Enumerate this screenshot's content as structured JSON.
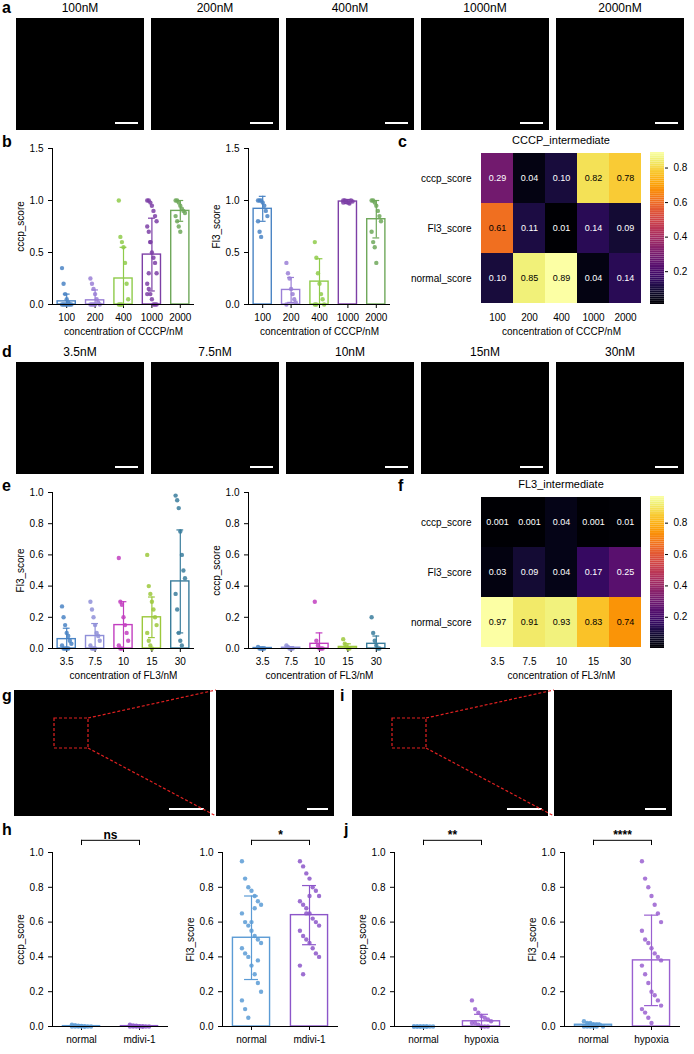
{
  "image_panels": [
    {
      "panel": "a",
      "titles": [
        "100nM",
        "200nM",
        "400nM",
        "1000nM",
        "2000nM"
      ]
    },
    {
      "panel": "d",
      "titles": [
        "3.5nM",
        "7.5nM",
        "10nM",
        "15nM",
        "30nM"
      ]
    },
    {
      "panel": "g"
    },
    {
      "panel": "i"
    }
  ],
  "chart_data": [
    {
      "panel": "b",
      "type": "bar",
      "x_label": "concentration of CCCP/nM",
      "y_label": "cccp_score",
      "categories": [
        "100",
        "200",
        "400",
        "1000",
        "2000"
      ],
      "values": [
        0.03,
        0.04,
        0.25,
        0.48,
        0.9
      ],
      "error": [
        0.07,
        0.1,
        0.3,
        0.35,
        0.1
      ],
      "points": [
        [
          0.35,
          0.2,
          0.1,
          0.05,
          0.02,
          0,
          0,
          0,
          0,
          0,
          0,
          0
        ],
        [
          0.25,
          0.2,
          0.15,
          0.1,
          0.05,
          0.02,
          0,
          0,
          0,
          0,
          0
        ],
        [
          1.0,
          0.65,
          0.6,
          0.55,
          0.4,
          0.2,
          0.05,
          0,
          0,
          0
        ],
        [
          1.0,
          1.0,
          0.98,
          0.95,
          0.9,
          0.85,
          0.8,
          0.75,
          0.7,
          0.6,
          0.5,
          0.45,
          0.4,
          0.3,
          0.2,
          0.15,
          0.1,
          0.05,
          0,
          0,
          0,
          0.1,
          0.3,
          0.6
        ],
        [
          1.0,
          1.0,
          0.98,
          0.95,
          0.92,
          0.9,
          0.88,
          0.85,
          0.8,
          0.75,
          0.7
        ]
      ],
      "colors": [
        "#4a84c4",
        "#9a7fd6",
        "#8fcb4a",
        "#7d3fa6",
        "#6fa85a"
      ],
      "ylim": [
        0,
        1.5
      ],
      "yticks": [
        {
          "value": 0,
          "label": "0.0"
        },
        0.5,
        {
          "value": 1,
          "label": "1.0"
        },
        1.5
      ]
    },
    {
      "type": "bar",
      "x_label": "concentration of CCCP/nM",
      "y_label": "Fl3_score",
      "categories": [
        "100",
        "200",
        "400",
        "1000",
        "2000"
      ],
      "values": [
        0.92,
        0.14,
        0.22,
        0.99,
        0.82
      ],
      "error": [
        0.12,
        0.12,
        0.22,
        0.02,
        0.18
      ],
      "points": [
        [
          1.0,
          1.0,
          1.0,
          0.98,
          0.95,
          0.9,
          0.85,
          0.8,
          0.7,
          0.65
        ],
        [
          0.4,
          0.3,
          0.25,
          0.15,
          0.1,
          0.05,
          0.02,
          0
        ],
        [
          0.6,
          0.45,
          0.3,
          0.2,
          0.1,
          0.05,
          0,
          0,
          0
        ],
        [
          1.0,
          1.0,
          0.99,
          0.98,
          0.97,
          1.0,
          0.99,
          0.98
        ],
        [
          1.0,
          1.0,
          0.98,
          0.95,
          0.9,
          0.85,
          0.8,
          0.7,
          0.6,
          0.55,
          0.4
        ]
      ],
      "colors": [
        "#4a84c4",
        "#9a7fd6",
        "#8fcb4a",
        "#7d3fa6",
        "#6fa85a"
      ],
      "ylim": [
        0,
        1.5
      ],
      "yticks": [
        {
          "value": 0,
          "label": "0.0"
        },
        0.5,
        {
          "value": 1,
          "label": "1.0"
        },
        1.5
      ]
    },
    {
      "panel": "c",
      "type": "heatmap",
      "title": "CCCP_intermediate",
      "x_label": "concentration of CCCP/nM",
      "categories": [
        "100",
        "200",
        "400",
        "1000",
        "2000"
      ],
      "rows": [
        "cccp_score",
        "Fl3_score",
        "normal_score"
      ],
      "cells": [
        [
          0.29,
          0.04,
          0.1,
          0.82,
          0.78
        ],
        [
          0.61,
          0.11,
          0.01,
          0.14,
          0.09
        ],
        [
          0.1,
          0.85,
          0.89,
          0.04,
          0.14
        ]
      ],
      "value_labels": [
        [
          "0.29",
          "0.04",
          "0.10",
          "0.82",
          "0.78"
        ],
        [
          "0.61",
          "0.11",
          "0.01",
          "0.14",
          "0.09"
        ],
        [
          "0.10",
          "0.85",
          "0.89",
          "0.04",
          "0.14"
        ]
      ],
      "data_labels": true,
      "colorbar_range": [
        0.01,
        0.89
      ],
      "colorbar_ticks": [
        0.2,
        0.4,
        0.6,
        0.8
      ]
    },
    {
      "panel": "e",
      "type": "bar",
      "x_label": "concentration of FL3/nM",
      "y_label": "Fl3_score",
      "categories": [
        "3.5",
        "7.5",
        "10",
        "15",
        "30"
      ],
      "values": [
        0.06,
        0.08,
        0.15,
        0.2,
        0.43
      ],
      "error": [
        0.07,
        0.08,
        0.15,
        0.13,
        0.33
      ],
      "points": [
        [
          0.27,
          0.2,
          0.15,
          0.1,
          0.08,
          0.05,
          0.03,
          0.02,
          0,
          0,
          0,
          0
        ],
        [
          0.3,
          0.25,
          0.2,
          0.15,
          0.1,
          0.08,
          0.05,
          0.02,
          0,
          0,
          0
        ],
        [
          0.58,
          0.3,
          0.28,
          0.2,
          0.15,
          0.1,
          0.05,
          0.02,
          0,
          0
        ],
        [
          0.6,
          0.4,
          0.35,
          0.3,
          0.25,
          0.2,
          0.15,
          0.1,
          0.05,
          0.02,
          0
        ],
        [
          0.98,
          0.95,
          0.9,
          0.75,
          0.6,
          0.5,
          0.45,
          0.35,
          0.25,
          0.1,
          0.05,
          0.02
        ]
      ],
      "colors": [
        "#4a84c4",
        "#8f8fd8",
        "#c23fc0",
        "#9cc83c",
        "#3a7d9c"
      ],
      "ylim": [
        0,
        1
      ],
      "yticks": [
        {
          "value": 0,
          "label": "0.0"
        },
        0.2,
        0.4,
        0.6,
        0.8,
        {
          "value": 1,
          "label": "1.0"
        }
      ]
    },
    {
      "type": "bar",
      "x_label": "concentration of FL3/nM",
      "y_label": "cccp_score",
      "categories": [
        "3.5",
        "7.5",
        "10",
        "15",
        "30"
      ],
      "values": [
        0.003,
        0.005,
        0.03,
        0.01,
        0.03
      ],
      "error": [
        0.005,
        0.007,
        0.07,
        0.02,
        0.05
      ],
      "points": [
        [
          0.01,
          0,
          0,
          0,
          0
        ],
        [
          0.02,
          0.01,
          0,
          0,
          0
        ],
        [
          0.3,
          0.05,
          0.02,
          0,
          0,
          0
        ],
        [
          0.06,
          0.03,
          0.01,
          0,
          0
        ],
        [
          0.2,
          0.1,
          0.05,
          0.02,
          0,
          0
        ]
      ],
      "colors": [
        "#4a84c4",
        "#8f8fd8",
        "#c23fc0",
        "#9cc83c",
        "#3a7d9c"
      ],
      "ylim": [
        0,
        1
      ],
      "yticks": [
        {
          "value": 0,
          "label": "0.0"
        },
        0.2,
        0.4,
        0.6,
        0.8,
        {
          "value": 1,
          "label": "1.0"
        }
      ]
    },
    {
      "panel": "f",
      "type": "heatmap",
      "title": "FL3_intermediate",
      "x_label": "concentration of FL3/nM",
      "categories": [
        "3.5",
        "7.5",
        "10",
        "15",
        "30"
      ],
      "rows": [
        "cccp_score",
        "Fl3_score",
        "normal_score"
      ],
      "cells": [
        [
          0.001,
          0.001,
          0.04,
          0.001,
          0.01
        ],
        [
          0.03,
          0.09,
          0.04,
          0.17,
          0.25
        ],
        [
          0.97,
          0.91,
          0.93,
          0.83,
          0.74
        ]
      ],
      "data_labels": true,
      "colorbar_range": [
        0.001,
        0.97
      ],
      "colorbar_ticks": [
        0.2,
        0.4,
        0.6,
        0.8
      ]
    },
    {
      "panel": "h",
      "type": "bar",
      "y_label": "cccp_score",
      "categories": [
        "normal",
        "mdivi-1"
      ],
      "values": [
        0.002,
        0.002
      ],
      "error": [
        0.004,
        0.004
      ],
      "points": [
        [
          0.01,
          0.008,
          0.005,
          0.003,
          0,
          0,
          0,
          0,
          0,
          0,
          0,
          0
        ],
        [
          0.01,
          0.006,
          0.004,
          0.002,
          0,
          0,
          0,
          0,
          0,
          0,
          0,
          0
        ]
      ],
      "colors": [
        "#5b9bd5",
        "#8c56c9"
      ],
      "significance": "ns",
      "ylim": [
        0,
        1
      ],
      "yticks": [
        {
          "value": 0,
          "label": "0.0"
        },
        0.2,
        0.4,
        0.6,
        0.8,
        {
          "value": 1,
          "label": "1.0"
        }
      ]
    },
    {
      "type": "bar",
      "y_label": "Fl3_score",
      "categories": [
        "normal",
        "mdivi-1"
      ],
      "values": [
        0.51,
        0.64
      ],
      "error": [
        0.24,
        0.17
      ],
      "points": [
        [
          0.95,
          0.85,
          0.8,
          0.78,
          0.75,
          0.72,
          0.7,
          0.65,
          0.6,
          0.58,
          0.55,
          0.52,
          0.5,
          0.48,
          0.45,
          0.42,
          0.4,
          0.35,
          0.3,
          0.25,
          0.2,
          0.15,
          0.1,
          0.05,
          0.6,
          0.68,
          0.38
        ],
        [
          0.95,
          0.92,
          0.88,
          0.85,
          0.8,
          0.78,
          0.75,
          0.72,
          0.7,
          0.68,
          0.65,
          0.62,
          0.6,
          0.58,
          0.55,
          0.52,
          0.5,
          0.48,
          0.45,
          0.42,
          0.4,
          0.35,
          0.3,
          0.65,
          0.75
        ]
      ],
      "colors": [
        "#5b9bd5",
        "#8c56c9"
      ],
      "significance": "*",
      "ylim": [
        0,
        1
      ],
      "yticks": [
        {
          "value": 0,
          "label": "0.0"
        },
        0.2,
        0.4,
        0.6,
        0.8,
        {
          "value": 1,
          "label": "1.0"
        }
      ]
    },
    {
      "panel": "j",
      "type": "bar",
      "y_label": "cccp_score",
      "categories": [
        "normal",
        "hypoxia"
      ],
      "values": [
        0,
        0.03
      ],
      "error": [
        0.001,
        0.04
      ],
      "points": [
        [
          0,
          0,
          0,
          0,
          0,
          0,
          0,
          0,
          0,
          0,
          0,
          0
        ],
        [
          0.15,
          0.1,
          0.08,
          0.06,
          0.05,
          0.04,
          0.03,
          0.02,
          0.02,
          0.01,
          0,
          0,
          0
        ]
      ],
      "colors": [
        "#5b9bd5",
        "#9a60d0"
      ],
      "significance": "**",
      "ylim": [
        0,
        1
      ],
      "yticks": [
        {
          "value": 0,
          "label": "0.0"
        },
        0.2,
        0.4,
        0.6,
        0.8,
        {
          "value": 1,
          "label": "1.0"
        }
      ]
    },
    {
      "type": "bar",
      "y_label": "Fl3_score",
      "categories": [
        "normal",
        "hypoxia"
      ],
      "values": [
        0.01,
        0.38
      ],
      "error": [
        0.01,
        0.26
      ],
      "points": [
        [
          0.03,
          0.02,
          0.02,
          0.01,
          0.01,
          0.01,
          0,
          0,
          0,
          0,
          0,
          0
        ],
        [
          0.95,
          0.85,
          0.8,
          0.75,
          0.7,
          0.65,
          0.6,
          0.55,
          0.5,
          0.48,
          0.45,
          0.42,
          0.4,
          0.38,
          0.35,
          0.3,
          0.25,
          0.2,
          0.18,
          0.15,
          0.12,
          0.1,
          0.08,
          0.05,
          0.02
        ]
      ],
      "colors": [
        "#5b9bd5",
        "#9a60d0"
      ],
      "significance": "****",
      "ylim": [
        0,
        1
      ],
      "yticks": [
        {
          "value": 0,
          "label": "0.0"
        },
        0.2,
        0.4,
        0.6,
        0.8,
        {
          "value": 1,
          "label": "1.0"
        }
      ]
    }
  ]
}
